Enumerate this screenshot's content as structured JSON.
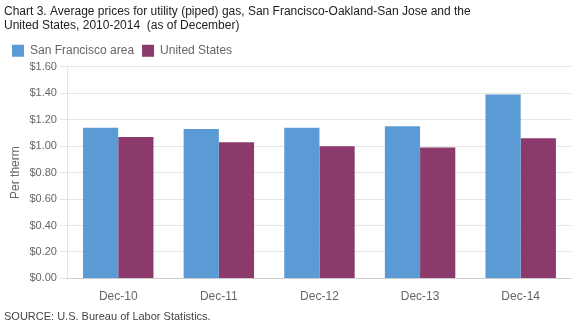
{
  "chart_data": {
    "type": "bar",
    "title": "Chart 3. Average prices for utility (piped) gas, San Francisco-Oakland-San Jose and the",
    "subtitle": "United States, 2010-2014  (as of December)",
    "y_label": "Per therm",
    "source": "SOURCE: U.S. Bureau of Labor Statistics.",
    "categories": [
      "Dec-10",
      "Dec-11",
      "Dec-12",
      "Dec-13",
      "Dec-14"
    ],
    "series": [
      {
        "name": "San Francisco area",
        "color": "#5B9BD5",
        "values": [
          1.14,
          1.13,
          1.14,
          1.15,
          1.39
        ]
      },
      {
        "name": "United States",
        "color": "#8B3A6B",
        "values": [
          1.07,
          1.03,
          1.0,
          0.99,
          1.06
        ]
      }
    ],
    "ylim": [
      0,
      1.6
    ],
    "yticks": [
      {
        "value": 0.0,
        "label": "$0.00"
      },
      {
        "value": 0.2,
        "label": "$0.20"
      },
      {
        "value": 0.4,
        "label": "$0.40"
      },
      {
        "value": 0.6,
        "label": "$0.60"
      },
      {
        "value": 0.8,
        "label": "$0.80"
      },
      {
        "value": 1.0,
        "label": "$1.00"
      },
      {
        "value": 1.2,
        "label": "$1.20"
      },
      {
        "value": 1.4,
        "label": "$1.40"
      },
      {
        "value": 1.6,
        "label": "$1.60"
      }
    ],
    "grid": true,
    "legend": "upper left"
  }
}
